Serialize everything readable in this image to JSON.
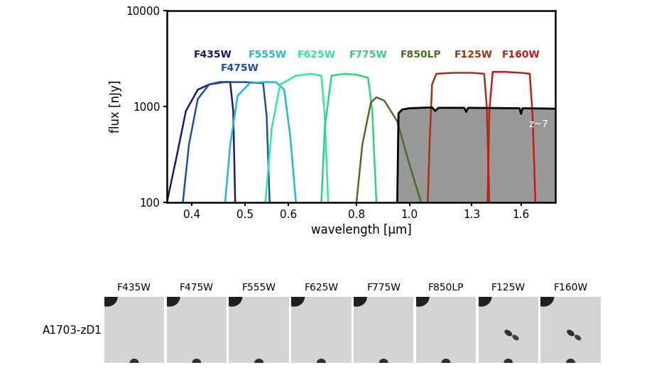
{
  "chart_data": {
    "type": "line",
    "xlabel": "wavelength [μm]",
    "ylabel": "flux [nJy]",
    "log": true,
    "xlim": [
      0.36,
      1.85
    ],
    "ylim": [
      100,
      10000
    ],
    "xticks": [
      0.4,
      0.5,
      0.6,
      0.8,
      1.0,
      1.3,
      1.6
    ],
    "yticks": [
      100,
      1000,
      10000
    ],
    "series": [
      {
        "name": "F435W",
        "color": "#1c1a70",
        "x": [
          0.36,
          0.375,
          0.39,
          0.41,
          0.43,
          0.45,
          0.47,
          0.476,
          0.48
        ],
        "values": [
          100,
          300,
          900,
          1500,
          1700,
          1800,
          1800,
          900,
          100
        ]
      },
      {
        "name": "F475W",
        "color": "#1f4f9e",
        "x": [
          0.385,
          0.395,
          0.41,
          0.43,
          0.46,
          0.5,
          0.54,
          0.548,
          0.555
        ],
        "values": [
          100,
          400,
          1200,
          1700,
          1800,
          1800,
          1750,
          800,
          100
        ]
      },
      {
        "name": "F555W",
        "color": "#22b8d8",
        "x": [
          0.46,
          0.47,
          0.485,
          0.51,
          0.54,
          0.57,
          0.59,
          0.605,
          0.62
        ],
        "values": [
          100,
          400,
          1300,
          1750,
          1800,
          1800,
          1500,
          500,
          100
        ]
      },
      {
        "name": "F625W",
        "color": "#30e8a0",
        "x": [
          0.545,
          0.56,
          0.58,
          0.62,
          0.66,
          0.69,
          0.7,
          0.71
        ],
        "values": [
          100,
          600,
          1700,
          2100,
          2200,
          2100,
          800,
          100
        ]
      },
      {
        "name": "F775W",
        "color": "#2ed47a",
        "x": [
          0.69,
          0.7,
          0.72,
          0.76,
          0.8,
          0.84,
          0.855,
          0.87
        ],
        "values": [
          100,
          600,
          2100,
          2200,
          2150,
          2000,
          900,
          100
        ]
      },
      {
        "name": "F850LP",
        "color": "#4c6e22",
        "x": [
          0.8,
          0.82,
          0.85,
          0.87,
          0.9,
          0.95,
          1.0,
          1.05
        ],
        "values": [
          100,
          400,
          1100,
          1250,
          1150,
          700,
          250,
          100
        ]
      },
      {
        "name": "F125W",
        "color": "#a83210",
        "x": [
          1.08,
          1.09,
          1.1,
          1.12,
          1.2,
          1.3,
          1.37,
          1.385,
          1.4
        ],
        "values": [
          100,
          500,
          1700,
          2200,
          2250,
          2250,
          2200,
          1000,
          100
        ]
      },
      {
        "name": "F160W",
        "color": "#c81a1a",
        "x": [
          1.39,
          1.4,
          1.42,
          1.5,
          1.6,
          1.66,
          1.68,
          1.7
        ],
        "values": [
          100,
          900,
          2300,
          2300,
          2250,
          2200,
          800,
          100
        ]
      },
      {
        "name": "z~7",
        "color": "#000000",
        "type": "area",
        "x": [
          0.95,
          0.955,
          0.97,
          1.0,
          1.1,
          1.115,
          1.13,
          1.26,
          1.27,
          1.28,
          1.59,
          1.6,
          1.61,
          1.85
        ],
        "values": [
          100,
          850,
          930,
          960,
          980,
          900,
          970,
          970,
          880,
          970,
          960,
          840,
          960,
          950
        ]
      }
    ]
  },
  "stamps": {
    "row_label": "A1703-zD1",
    "filters": [
      "F435W",
      "F475W",
      "F555W",
      "F625W",
      "F775W",
      "F850LP",
      "F125W",
      "F160W"
    ]
  }
}
